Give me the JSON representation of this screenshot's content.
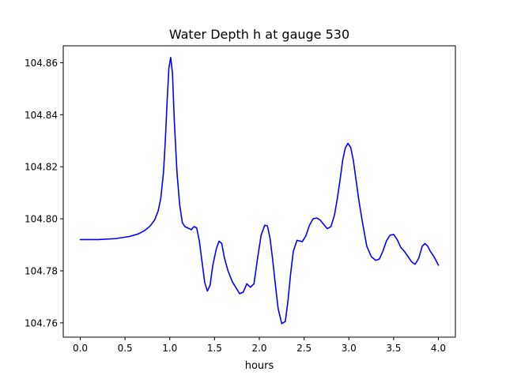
{
  "chart_data": {
    "type": "line",
    "title": "Water Depth h at gauge 530",
    "xlabel": "hours",
    "ylabel": "",
    "xlim": [
      -0.19,
      4.19
    ],
    "ylim": [
      104.7545,
      104.8665
    ],
    "xticks": [
      0.0,
      0.5,
      1.0,
      1.5,
      2.0,
      2.5,
      3.0,
      3.5,
      4.0
    ],
    "xtick_labels": [
      "0.0",
      "0.5",
      "1.0",
      "1.5",
      "2.0",
      "2.5",
      "3.0",
      "3.5",
      "4.0"
    ],
    "yticks": [
      104.76,
      104.78,
      104.8,
      104.82,
      104.84,
      104.86
    ],
    "ytick_labels": [
      "104.76",
      "104.78",
      "104.80",
      "104.82",
      "104.84",
      "104.86"
    ],
    "grid": false,
    "series": [
      {
        "color": "#0000ff",
        "x": [
          0.0,
          0.2,
          0.4,
          0.55,
          0.65,
          0.72,
          0.78,
          0.83,
          0.87,
          0.9,
          0.93,
          0.95,
          0.97,
          0.99,
          1.01,
          1.03,
          1.05,
          1.08,
          1.11,
          1.14,
          1.17,
          1.2,
          1.24,
          1.27,
          1.3,
          1.33,
          1.36,
          1.39,
          1.42,
          1.45,
          1.48,
          1.52,
          1.55,
          1.58,
          1.61,
          1.65,
          1.7,
          1.74,
          1.78,
          1.82,
          1.86,
          1.9,
          1.94,
          1.98,
          2.02,
          2.06,
          2.09,
          2.12,
          2.15,
          2.18,
          2.21,
          2.25,
          2.29,
          2.32,
          2.35,
          2.38,
          2.42,
          2.45,
          2.48,
          2.52,
          2.56,
          2.6,
          2.64,
          2.68,
          2.72,
          2.76,
          2.8,
          2.84,
          2.87,
          2.9,
          2.93,
          2.96,
          2.99,
          3.02,
          3.05,
          3.08,
          3.11,
          3.15,
          3.2,
          3.25,
          3.3,
          3.34,
          3.38,
          3.42,
          3.46,
          3.5,
          3.54,
          3.58,
          3.62,
          3.66,
          3.7,
          3.74,
          3.78,
          3.82,
          3.85,
          3.88,
          3.91,
          3.95,
          4.0
        ],
        "y": [
          104.792,
          104.792,
          104.7924,
          104.7932,
          104.7942,
          104.7955,
          104.7972,
          104.7995,
          104.803,
          104.808,
          104.818,
          104.83,
          104.845,
          104.858,
          104.862,
          104.856,
          104.838,
          104.818,
          104.8055,
          104.7985,
          104.797,
          104.7965,
          104.7958,
          104.797,
          104.7965,
          104.7915,
          104.7835,
          104.7755,
          104.7722,
          104.7745,
          104.782,
          104.7885,
          104.7914,
          104.7905,
          104.785,
          104.78,
          104.7757,
          104.7735,
          104.7712,
          104.7718,
          104.775,
          104.7737,
          104.775,
          104.7847,
          104.7937,
          104.7975,
          104.7973,
          104.7925,
          104.784,
          104.7745,
          104.7655,
          104.7597,
          104.7605,
          104.7685,
          104.779,
          104.7875,
          104.7917,
          104.7915,
          104.7912,
          104.7935,
          104.7975,
          104.8,
          104.8003,
          104.7995,
          104.7978,
          104.7962,
          104.797,
          104.8015,
          104.8075,
          104.8145,
          104.8223,
          104.8272,
          104.829,
          104.8275,
          104.8225,
          104.815,
          104.8075,
          104.799,
          104.7895,
          104.7855,
          104.784,
          104.7845,
          104.7875,
          104.7915,
          104.7937,
          104.794,
          104.792,
          104.789,
          104.7875,
          104.7855,
          104.7835,
          104.7825,
          104.7848,
          104.7895,
          104.7905,
          104.7895,
          104.7875,
          104.7855,
          104.7822
        ]
      }
    ]
  }
}
